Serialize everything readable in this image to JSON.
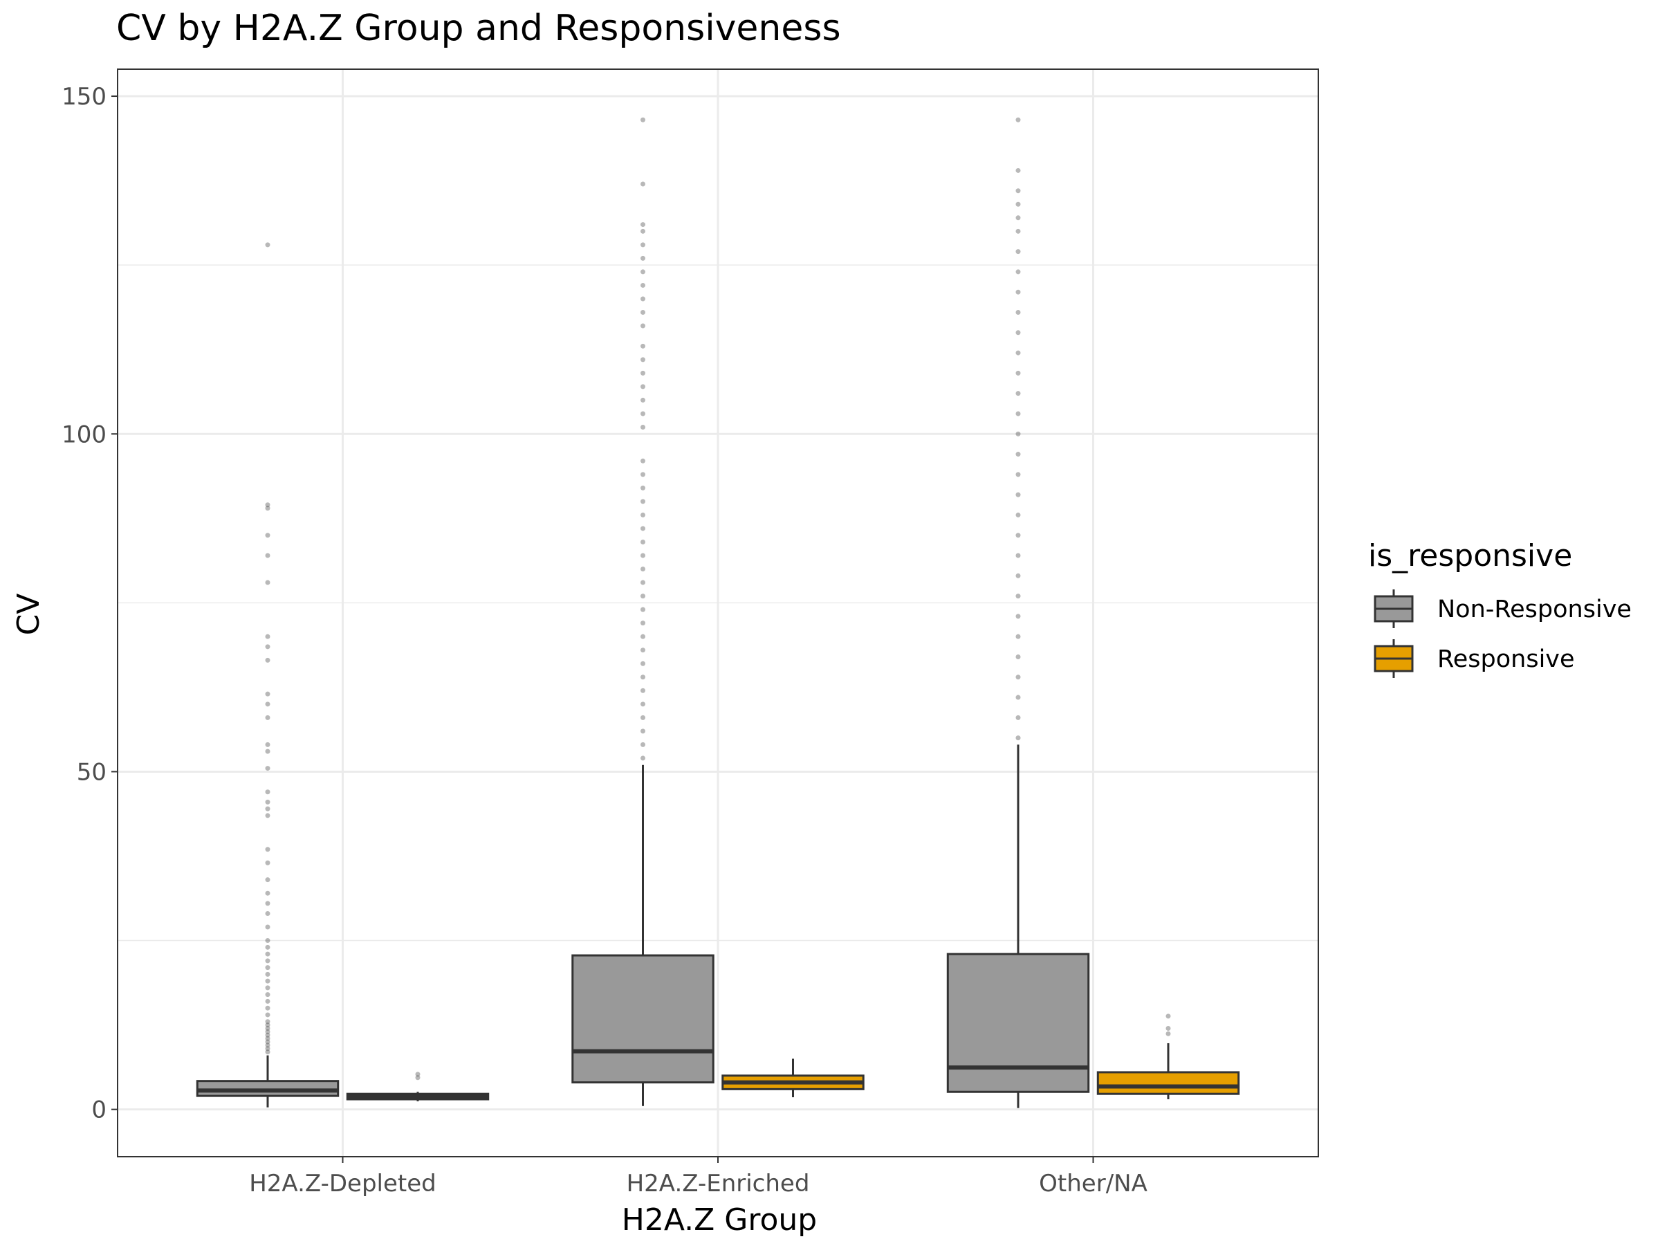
{
  "chart_data": {
    "type": "boxplot",
    "title": "CV by H2A.Z Group and Responsiveness",
    "xlabel": "H2A.Z Group",
    "ylabel": "CV",
    "categories": [
      "H2A.Z-Depleted",
      "H2A.Z-Enriched",
      "Other/NA"
    ],
    "ylim": [
      -7,
      154
    ],
    "yticks": [
      0,
      50,
      100,
      150
    ],
    "grid": true,
    "legend": {
      "title": "is_responsive",
      "placement": "right",
      "entries": [
        "Non-Responsive",
        "Responsive"
      ]
    },
    "colors": {
      "Non-Responsive": "#999999",
      "Responsive": "#E69F00",
      "outline": "#333333",
      "grid": "#ebebeb",
      "border": "#333333"
    },
    "series": [
      {
        "name": "Non-Responsive",
        "boxes": [
          {
            "category": "H2A.Z-Depleted",
            "whisker_low": 0.3,
            "q1": 2.0,
            "median": 2.8,
            "q3": 4.2,
            "whisker_high": 8.0,
            "outliers": [
              8.5,
              9,
              9.5,
              10,
              10.5,
              11,
              11.5,
              12,
              12.5,
              13,
              14,
              15,
              16,
              17,
              18,
              19,
              20,
              21,
              22,
              23,
              24,
              25,
              27,
              29,
              30.5,
              32,
              34,
              36.5,
              38.5,
              43.5,
              44.5,
              45.5,
              47,
              50.5,
              53,
              54,
              58,
              60,
              61.5,
              66.5,
              68.5,
              70,
              78,
              82,
              85,
              89,
              89.5,
              128
            ]
          },
          {
            "category": "H2A.Z-Enriched",
            "whisker_low": 0.5,
            "q1": 4.0,
            "median": 8.6,
            "q3": 22.8,
            "whisker_high": 51,
            "outliers": [
              52,
              54,
              56,
              58,
              60,
              62,
              64,
              66,
              68,
              70,
              72,
              74,
              76,
              78,
              80,
              82,
              84,
              86,
              88,
              90,
              92,
              94,
              96,
              101,
              103,
              105,
              107,
              109,
              111,
              113,
              116,
              118,
              120,
              122,
              124,
              126,
              128,
              130,
              131,
              137,
              146.5
            ]
          },
          {
            "category": "Other/NA",
            "whisker_low": 0.2,
            "q1": 2.6,
            "median": 6.2,
            "q3": 23.0,
            "whisker_high": 54,
            "outliers": [
              55,
              58,
              61,
              64,
              67,
              70,
              73,
              76,
              79,
              82,
              85,
              88,
              91,
              94,
              97,
              100,
              103,
              106,
              109,
              112,
              115,
              118,
              121,
              124,
              127,
              130,
              132,
              134,
              136,
              139,
              146.5
            ]
          }
        ]
      },
      {
        "name": "Responsive",
        "boxes": [
          {
            "category": "H2A.Z-Depleted",
            "whisker_low": 1.2,
            "q1": 1.5,
            "median": 1.9,
            "q3": 2.3,
            "whisker_high": 2.6,
            "outliers": [
              4.7,
              5.2
            ]
          },
          {
            "category": "H2A.Z-Enriched",
            "whisker_low": 1.8,
            "q1": 3.0,
            "median": 4.0,
            "q3": 5.0,
            "whisker_high": 7.5,
            "outliers": []
          },
          {
            "category": "Other/NA",
            "whisker_low": 1.5,
            "q1": 2.3,
            "median": 3.4,
            "q3": 5.5,
            "whisker_high": 9.8,
            "outliers": [
              11.2,
              12.0,
              13.8
            ]
          }
        ]
      }
    ]
  }
}
